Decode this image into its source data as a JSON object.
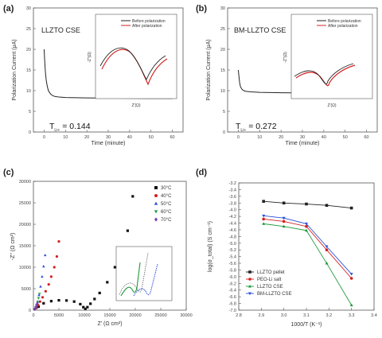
{
  "panels": {
    "a": {
      "label": "(a)",
      "title": "LLZTO CSE",
      "ylabel": "Polarization Current (μA)",
      "xlabel": "Time (minute)",
      "annotation": "T",
      "annotation_sub": "Li+",
      "annotation_value": "= 0.144",
      "inset": {
        "xlabel": "Z'(Ω)",
        "ylabel": "-Z''(Ω)",
        "legend": [
          "Before polarization",
          "After polarization"
        ]
      }
    },
    "b": {
      "label": "(b)",
      "title": "BM-LLZTO CSE",
      "ylabel": "Polarization Current (μA)",
      "xlabel": "Time (minute)",
      "annotation": "T",
      "annotation_sub": "Li+",
      "annotation_value": "= 0.272",
      "inset": {
        "xlabel": "Z'(Ω)",
        "ylabel": "-Z''(Ω)",
        "legend": [
          "Before polarization",
          "After polarization"
        ]
      }
    },
    "c": {
      "label": "(c)",
      "ylabel": "-Z'' (Ω cm²)",
      "xlabel": "Z' (Ω cm²)"
    },
    "d": {
      "label": "(d)",
      "ylabel": "log(σ_total) (S cm⁻¹)",
      "xlabel": "1000/T (K⁻¹)"
    }
  },
  "chart_data": [
    {
      "id": "a",
      "type": "line",
      "xlabel": "Time (minute)",
      "ylabel": "Polarization Current (μA)",
      "xlim": [
        -5,
        65
      ],
      "ylim": [
        0,
        30
      ],
      "xticks": [
        0,
        10,
        20,
        30,
        40,
        50,
        60
      ],
      "yticks": [
        0,
        5,
        10,
        15,
        20,
        25,
        30
      ],
      "tick_labels_legible": false,
      "series": [
        {
          "color": "#222222",
          "x": [
            0,
            0.3,
            0.6,
            1,
            1.5,
            2,
            3,
            4,
            5,
            7,
            10,
            15,
            20,
            30,
            40,
            50,
            60
          ],
          "y": [
            20,
            17,
            14.5,
            12.5,
            11,
            10,
            9.2,
            8.8,
            8.6,
            8.45,
            8.35,
            8.3,
            8.25,
            8.2,
            8.15,
            8.1,
            8.1
          ]
        }
      ]
    },
    {
      "id": "b",
      "type": "line",
      "xlabel": "Time (minute)",
      "ylabel": "Polarization Current (μA)",
      "xlim": [
        -5,
        65
      ],
      "ylim": [
        0,
        30
      ],
      "xticks": [
        0,
        10,
        20,
        30,
        40,
        50,
        60
      ],
      "yticks": [
        0,
        5,
        10,
        15,
        20,
        25,
        30
      ],
      "tick_labels_legible": false,
      "series": [
        {
          "color": "#222222",
          "x": [
            0,
            0.3,
            0.6,
            1,
            1.5,
            2,
            3,
            4,
            6,
            10,
            20,
            30,
            40,
            50,
            60
          ],
          "y": [
            15,
            13.5,
            12,
            11,
            10.5,
            10.2,
            9.9,
            9.8,
            9.7,
            9.6,
            9.5,
            9.45,
            9.4,
            9.4,
            9.35
          ]
        }
      ]
    },
    {
      "id": "c",
      "type": "scatter",
      "xlabel": "Z' (Ω cm²)",
      "ylabel": "-Z'' (Ω cm²)",
      "xlim": [
        0,
        30000
      ],
      "ylim": [
        0,
        30000
      ],
      "xticks": [
        0,
        5000,
        10000,
        15000,
        20000,
        25000,
        30000
      ],
      "yticks": [
        0,
        5000,
        10000,
        15000,
        20000,
        25000,
        30000
      ],
      "legend_position": "top-right",
      "series": [
        {
          "name": "30°C",
          "color": "#111111",
          "marker": "square",
          "x": [
            1000,
            2000,
            3500,
            5000,
            6500,
            8000,
            9200,
            9800,
            10200,
            10600,
            11200,
            12000,
            13000,
            14500,
            16000,
            17500,
            18500,
            19500
          ],
          "y": [
            800,
            1600,
            2100,
            2300,
            2250,
            2000,
            1400,
            700,
            300,
            700,
            1500,
            2600,
            4000,
            6500,
            10000,
            14000,
            18500,
            26500
          ]
        },
        {
          "name": "40°C",
          "color": "#d42020",
          "marker": "circle",
          "x": [
            600,
            900,
            1300,
            1800,
            2400,
            3000,
            3500,
            4100,
            4600,
            5000
          ],
          "y": [
            500,
            1200,
            2000,
            3000,
            4400,
            6000,
            7800,
            10000,
            12500,
            16000
          ]
        },
        {
          "name": "50°C",
          "color": "#2a4fd8",
          "marker": "triangle-up",
          "x": [
            400,
            600,
            850,
            1100,
            1400,
            1700,
            2000,
            2300
          ],
          "y": [
            400,
            1000,
            2000,
            3500,
            5500,
            7800,
            10200,
            12800
          ]
        },
        {
          "name": "60°C",
          "color": "#1f9a3a",
          "marker": "triangle-down",
          "x": [
            300,
            450,
            600,
            800,
            1000,
            1200
          ],
          "y": [
            300,
            700,
            1200,
            1900,
            2800,
            3800
          ]
        },
        {
          "name": "70°C",
          "color": "#7a3fb5",
          "marker": "diamond",
          "x": [
            250,
            350,
            450,
            600,
            750
          ],
          "y": [
            200,
            400,
            700,
            1100,
            1600
          ]
        }
      ]
    },
    {
      "id": "d",
      "type": "line",
      "xlabel": "1000/T (K⁻¹)",
      "ylabel": "log(σ_total) (S cm⁻¹)",
      "xlim": [
        2.8,
        3.4
      ],
      "ylim": [
        -7.0,
        -3.2
      ],
      "xticks": [
        2.8,
        2.9,
        3.0,
        3.1,
        3.2,
        3.3,
        3.4
      ],
      "yticks": [
        -3.2,
        -3.4,
        -3.6,
        -3.8,
        -4.0,
        -4.2,
        -4.4,
        -4.6,
        -4.8,
        -5.0,
        -5.2,
        -5.4,
        -5.6,
        -5.8,
        -6.0,
        -6.2,
        -6.4,
        -6.6,
        -6.8,
        -7.0
      ],
      "x": [
        2.91,
        3.0,
        3.1,
        3.19,
        3.3
      ],
      "legend_position": "bottom-left",
      "series": [
        {
          "name": "LLZTO pellet",
          "color": "#222222",
          "marker": "square",
          "y": [
            -3.75,
            -3.8,
            -3.83,
            -3.87,
            -3.95
          ]
        },
        {
          "name": "PEO-Li salt",
          "color": "#d42020",
          "marker": "circle",
          "y": [
            -4.28,
            -4.35,
            -4.5,
            -5.2,
            -6.05
          ]
        },
        {
          "name": "LLZTO CSE",
          "color": "#1f9a3a",
          "marker": "triangle-up",
          "y": [
            -4.42,
            -4.5,
            -4.62,
            -5.6,
            -6.85
          ]
        },
        {
          "name": "BM-LLZTO CSE",
          "color": "#2a4fd8",
          "marker": "triangle-down",
          "y": [
            -4.18,
            -4.25,
            -4.42,
            -5.1,
            -5.92
          ]
        }
      ]
    }
  ]
}
